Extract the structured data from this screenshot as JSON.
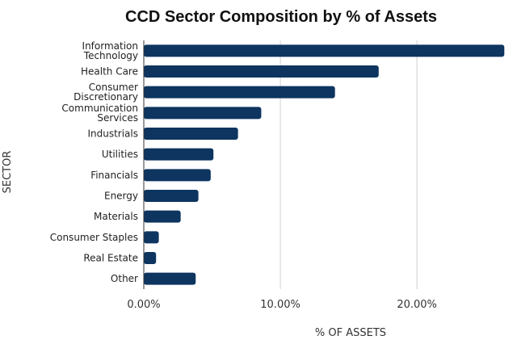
{
  "chart_data": {
    "type": "bar",
    "orientation": "horizontal",
    "title": "CCD Sector Composition by % of Assets",
    "xlabel": "% OF ASSETS",
    "ylabel": "SECTOR",
    "categories": [
      "Information Technology",
      "Health Care",
      "Consumer Discretionary",
      "Communication Services",
      "Industrials",
      "Utilities",
      "Financials",
      "Energy",
      "Materials",
      "Consumer Staples",
      "Real Estate",
      "Other"
    ],
    "category_lines": [
      [
        "Information",
        "Technology"
      ],
      [
        "Health Care"
      ],
      [
        "Consumer",
        "Discretionary"
      ],
      [
        "Communication",
        "Services"
      ],
      [
        "Industrials"
      ],
      [
        "Utilities"
      ],
      [
        "Financials"
      ],
      [
        "Energy"
      ],
      [
        "Materials"
      ],
      [
        "Consumer Staples"
      ],
      [
        "Real Estate"
      ],
      [
        "Other"
      ]
    ],
    "values": [
      26.4,
      17.2,
      14.0,
      8.6,
      6.9,
      5.1,
      4.9,
      4.0,
      2.7,
      1.1,
      0.9,
      3.8
    ],
    "xlim": [
      0,
      26.5
    ],
    "xticks": [
      0,
      10,
      20
    ],
    "xtick_labels": [
      "0.00%",
      "10.00%",
      "20.00%"
    ],
    "grid": "vertical",
    "bar_color": "#0d3560",
    "grid_color": "#d0d0d0"
  }
}
